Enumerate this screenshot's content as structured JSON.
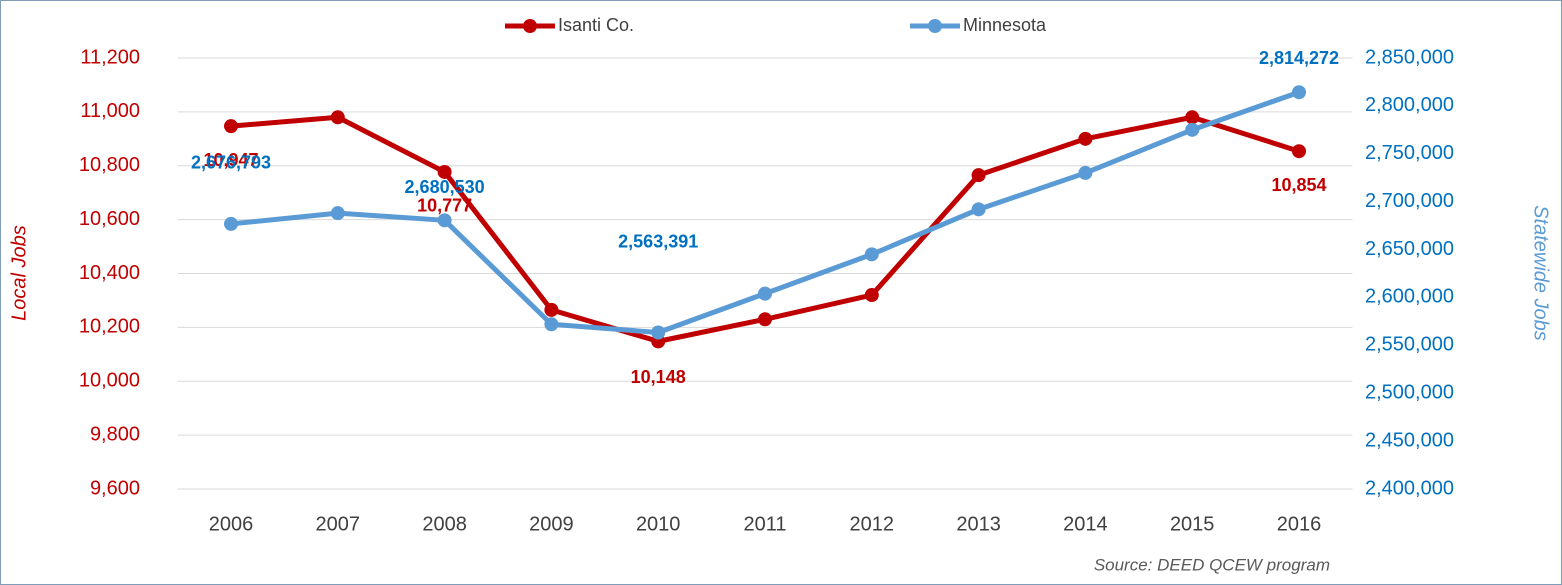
{
  "chart_data": {
    "type": "line",
    "categories": [
      "2006",
      "2007",
      "2008",
      "2009",
      "2010",
      "2011",
      "2012",
      "2013",
      "2014",
      "2015",
      "2016"
    ],
    "series": [
      {
        "name": "Isanti Co.",
        "color": "#c00000",
        "values": [
          10947,
          10980,
          10777,
          10265,
          10148,
          10230,
          10320,
          10765,
          10900,
          10980,
          10854
        ],
        "value_labels": [
          "10,947",
          null,
          "10,777",
          null,
          "10,148",
          null,
          null,
          null,
          null,
          null,
          "10,854"
        ]
      },
      {
        "name": "Minnesota",
        "color": "#5b9bd5",
        "axis": "y2",
        "label_color": "#0070c0",
        "values": [
          2676793,
          2688000,
          2680530,
          2572000,
          2563391,
          2604000,
          2645000,
          2692000,
          2730000,
          2775000,
          2814272
        ],
        "value_labels": [
          "2,676,793",
          null,
          "2,680,530",
          null,
          "2,563,391",
          null,
          null,
          null,
          null,
          null,
          "2,814,272"
        ]
      }
    ],
    "ylabel": "Local Jobs",
    "y2label": "Statewide Jobs",
    "ylim": [
      9600,
      11200
    ],
    "yticks": [
      {
        "value": 9600,
        "label": "9,600"
      },
      {
        "value": 9800,
        "label": "9,800"
      },
      {
        "value": 10000,
        "label": "10,000"
      },
      {
        "value": 10200,
        "label": "10,200"
      },
      {
        "value": 10400,
        "label": "10,400"
      },
      {
        "value": 10600,
        "label": "10,600"
      },
      {
        "value": 10800,
        "label": "10,800"
      },
      {
        "value": 11000,
        "label": "11,000"
      },
      {
        "value": 11200,
        "label": "11,200"
      }
    ],
    "y2lim": [
      2400000,
      2850000
    ],
    "y2ticks": [
      {
        "value": 2400000,
        "label": "2,400,000"
      },
      {
        "value": 2450000,
        "label": "2,450,000"
      },
      {
        "value": 2500000,
        "label": "2,500,000"
      },
      {
        "value": 2550000,
        "label": "2,550,000"
      },
      {
        "value": 2600000,
        "label": "2,600,000"
      },
      {
        "value": 2650000,
        "label": "2,650,000"
      },
      {
        "value": 2700000,
        "label": "2,700,000"
      },
      {
        "value": 2750000,
        "label": "2,750,000"
      },
      {
        "value": 2800000,
        "label": "2,800,000"
      },
      {
        "value": 2850000,
        "label": "2,850,000"
      }
    ],
    "grid": true,
    "legend": "top",
    "source": "Source: DEED QCEW program"
  }
}
